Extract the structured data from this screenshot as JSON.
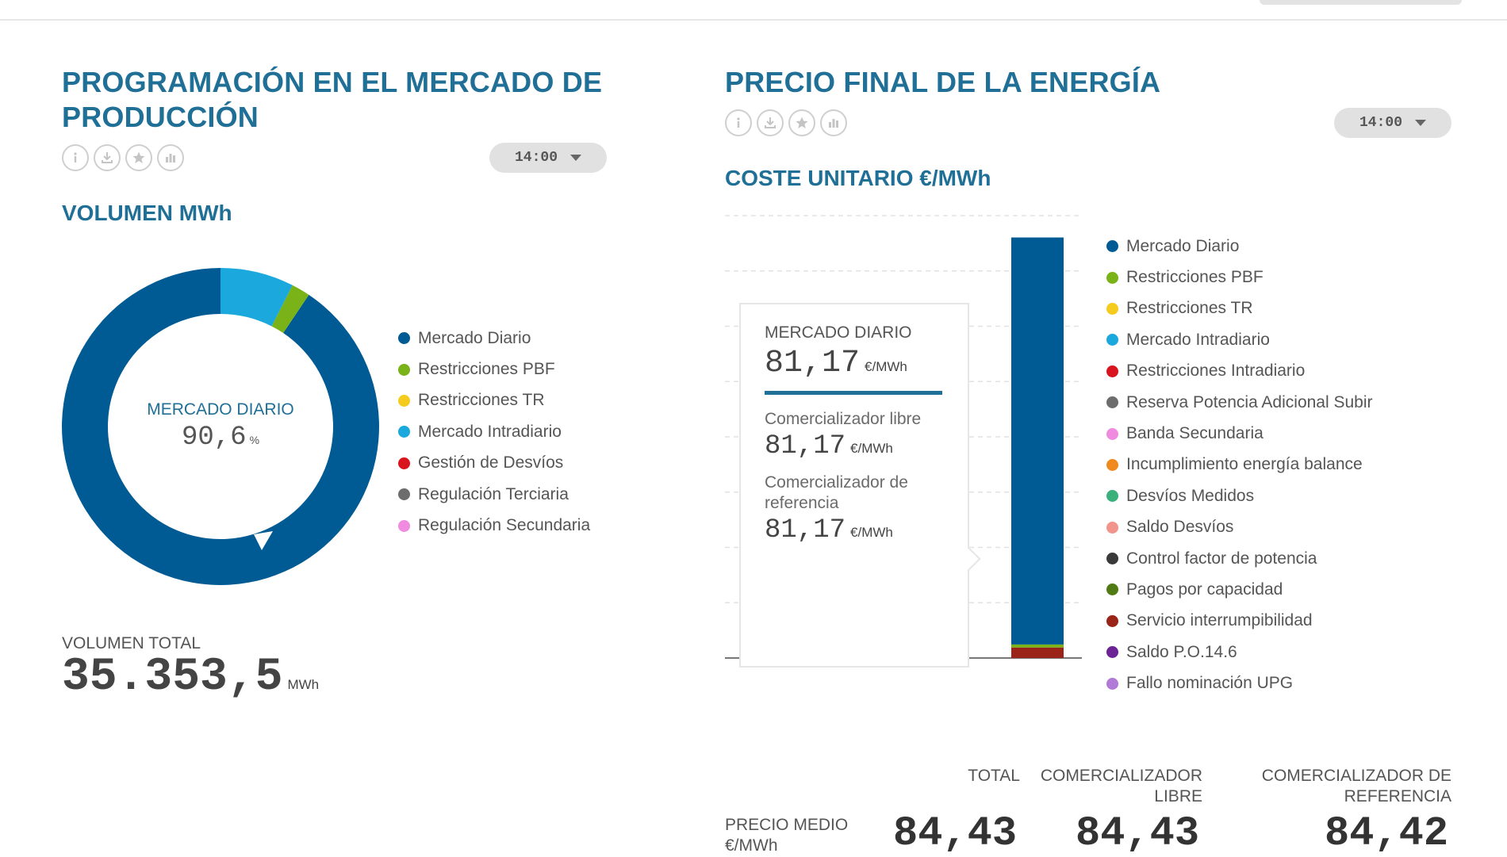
{
  "left_panel": {
    "title": "PROGRAMACIÓN EN EL MERCADO DE PRODUCCIÓN",
    "icons": [
      "info-icon",
      "download-icon",
      "star-icon",
      "chart-icon"
    ],
    "time_selector": "14:00",
    "subtitle": "VOLUMEN MWh",
    "donut_center": {
      "label": "MERCADO DIARIO",
      "value": "90,6",
      "unit": "%"
    },
    "legend": [
      {
        "label": "Mercado Diario",
        "color": "#005b94"
      },
      {
        "label": "Restricciones PBF",
        "color": "#7ab317"
      },
      {
        "label": "Restricciones TR",
        "color": "#f5cc1d"
      },
      {
        "label": "Mercado Intradiario",
        "color": "#1aa8dd"
      },
      {
        "label": "Gestión de Desvíos",
        "color": "#d9141e"
      },
      {
        "label": "Regulación Terciaria",
        "color": "#6d6d6d"
      },
      {
        "label": "Regulación Secundaria",
        "color": "#f08ce0"
      }
    ],
    "total_label": "VOLUMEN TOTAL",
    "total_value": "35.353,5",
    "total_unit": "MWh"
  },
  "right_panel": {
    "title": "PRECIO FINAL DE LA ENERGÍA",
    "icons": [
      "info-icon",
      "download-icon",
      "star-icon",
      "chart-icon"
    ],
    "time_selector": "14:00",
    "subtitle": "COSTE UNITARIO €/MWh",
    "tooltip": {
      "header": "MERCADO DIARIO",
      "value": "81,17",
      "unit": "€/MWh",
      "rows": [
        {
          "label": "Comercializador libre",
          "value": "81,17",
          "unit": "€/MWh"
        },
        {
          "label": "Comercializador de referencia",
          "value": "81,17",
          "unit": "€/MWh"
        }
      ]
    },
    "legend": [
      {
        "label": "Mercado Diario",
        "color": "#005b94"
      },
      {
        "label": "Restricciones PBF",
        "color": "#7ab317"
      },
      {
        "label": "Restricciones TR",
        "color": "#f5cc1d"
      },
      {
        "label": "Mercado Intradiario",
        "color": "#1aa8dd"
      },
      {
        "label": "Restricciones Intradiario",
        "color": "#d9141e"
      },
      {
        "label": "Reserva Potencia Adicional Subir",
        "color": "#6d6d6d"
      },
      {
        "label": "Banda Secundaria",
        "color": "#f08ce0"
      },
      {
        "label": "Incumplimiento energía balance",
        "color": "#f08a1c"
      },
      {
        "label": "Desvíos Medidos",
        "color": "#3ab07a"
      },
      {
        "label": "Saldo Desvíos",
        "color": "#f0948c"
      },
      {
        "label": "Control factor de potencia",
        "color": "#3a3a3a"
      },
      {
        "label": "Pagos por capacidad",
        "color": "#4f7a14"
      },
      {
        "label": "Servicio interrumpibilidad",
        "color": "#9a2418"
      },
      {
        "label": "Saldo P.O.14.6",
        "color": "#6b2396"
      },
      {
        "label": "Fallo nominación UPG",
        "color": "#b07ad6"
      }
    ],
    "table": {
      "headers": [
        "TOTAL",
        "COMERCIALIZADOR LIBRE",
        "COMERCIALIZADOR DE REFERENCIA"
      ],
      "row_label": "PRECIO MEDIO €/MWh",
      "values": [
        "84,43",
        "84,43",
        "84,42"
      ]
    }
  },
  "chart_data": [
    {
      "type": "pie",
      "title": "VOLUMEN MWh",
      "labels": [
        "Mercado Diario",
        "Restricciones PBF",
        "Mercado Intradiario"
      ],
      "values": [
        90.6,
        1.9,
        7.5
      ],
      "unit": "%",
      "colors": [
        "#005b94",
        "#7ab317",
        "#1aa8dd"
      ]
    },
    {
      "type": "bar",
      "title": "COSTE UNITARIO €/MWh",
      "categories": [
        "14:00"
      ],
      "ylim": [
        0,
        84.43
      ],
      "series": [
        {
          "name": "Servicio interrumpibilidad",
          "values": [
            2.1
          ],
          "color": "#9a2418"
        },
        {
          "name": "Restricciones PBF",
          "values": [
            0.6
          ],
          "color": "#7ab317"
        },
        {
          "name": "Mercado Diario",
          "values": [
            81.17
          ],
          "color": "#005b94"
        }
      ]
    }
  ]
}
